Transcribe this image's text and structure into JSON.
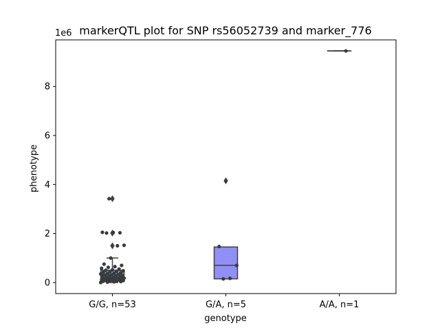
{
  "chart_data": {
    "type": "box",
    "title": "markerQTL plot for SNP rs56052739 and marker_776",
    "xlabel": "genotype",
    "ylabel": "phenotype",
    "y_offset_label": "1e6",
    "ylim": [
      -0.45,
      9.9
    ],
    "y_scale_multiplier": 1000000,
    "yticks": [
      0,
      2,
      4,
      6,
      8
    ],
    "ytick_labels": [
      "0",
      "2",
      "4",
      "6",
      "8"
    ],
    "categories": [
      "G/G, n=53",
      "G/A, n=5",
      "A/A, n=1"
    ],
    "colors": [
      "#5fb7ea",
      "#8f8ff5",
      "#ffffff"
    ],
    "boxes": [
      {
        "q1": 0.08,
        "median": 0.32,
        "q3": 0.5,
        "whisker_low": 0.0,
        "whisker_high": 1.0,
        "outliers": [
          1.5,
          2.02,
          3.42
        ]
      },
      {
        "q1": 0.15,
        "median": 0.7,
        "q3": 1.45,
        "whisker_low": 0.15,
        "whisker_high": 1.45,
        "outliers": [
          4.15
        ]
      },
      {
        "q1": 9.45,
        "median": 9.45,
        "q3": 9.45,
        "whisker_low": 9.45,
        "whisker_high": 9.45,
        "outliers": []
      }
    ],
    "points": [
      [
        0.0,
        0.02,
        0.03,
        0.04,
        0.05,
        0.06,
        0.07,
        0.08,
        0.09,
        0.1,
        0.1,
        0.11,
        0.12,
        0.13,
        0.14,
        0.15,
        0.16,
        0.17,
        0.18,
        0.2,
        0.21,
        0.22,
        0.24,
        0.25,
        0.27,
        0.28,
        0.3,
        0.31,
        0.33,
        0.35,
        0.36,
        0.38,
        0.4,
        0.42,
        0.44,
        0.46,
        0.48,
        0.5,
        0.52,
        0.55,
        0.58,
        0.62,
        0.65,
        0.7,
        0.75,
        1.0,
        1.5,
        1.52,
        2.02,
        2.04,
        2.03,
        2.05,
        3.42
      ],
      [
        0.15,
        0.17,
        0.7,
        1.47,
        4.15
      ],
      [
        9.45
      ]
    ]
  }
}
